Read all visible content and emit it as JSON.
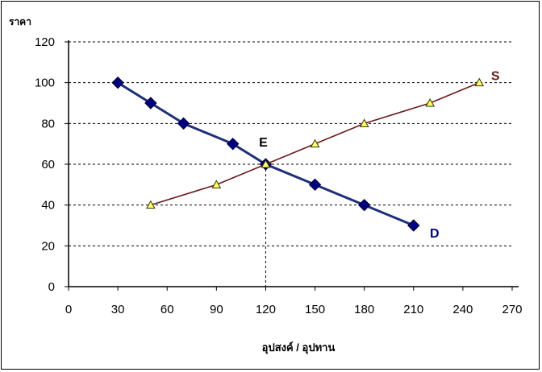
{
  "chart_data": {
    "type": "line",
    "ylabel": "ราคา",
    "xlabel": "อุปสงค์ / อุปทาน",
    "xlim": [
      0,
      270
    ],
    "ylim": [
      0,
      120
    ],
    "xticks": [
      0,
      30,
      60,
      90,
      120,
      150,
      180,
      210,
      240,
      270
    ],
    "yticks": [
      0,
      20,
      40,
      60,
      80,
      100,
      120
    ],
    "grid": "horizontal dashed",
    "series": [
      {
        "name": "D",
        "color": "#000080",
        "line_color": "#1f2f7a",
        "marker": "diamond",
        "points": [
          [
            30,
            100
          ],
          [
            50,
            90
          ],
          [
            70,
            80
          ],
          [
            100,
            70
          ],
          [
            120,
            60
          ],
          [
            150,
            50
          ],
          [
            180,
            40
          ],
          [
            210,
            30
          ]
        ]
      },
      {
        "name": "S",
        "color": "#ffff66",
        "line_color": "#6b1a1a",
        "marker": "triangle",
        "points": [
          [
            50,
            40
          ],
          [
            90,
            50
          ],
          [
            120,
            60
          ],
          [
            150,
            70
          ],
          [
            180,
            80
          ],
          [
            220,
            90
          ],
          [
            250,
            100
          ]
        ]
      }
    ],
    "annotations": [
      {
        "text": "E",
        "x": 120,
        "y": 60,
        "color": "#000000"
      },
      {
        "text": "D",
        "x": 210,
        "y": 30,
        "color": "#000080"
      },
      {
        "text": "S",
        "x": 250,
        "y": 100,
        "color": "#6b1a1a"
      }
    ],
    "reference_line": {
      "x": 120,
      "y_from": 0,
      "y_to": 60
    }
  }
}
